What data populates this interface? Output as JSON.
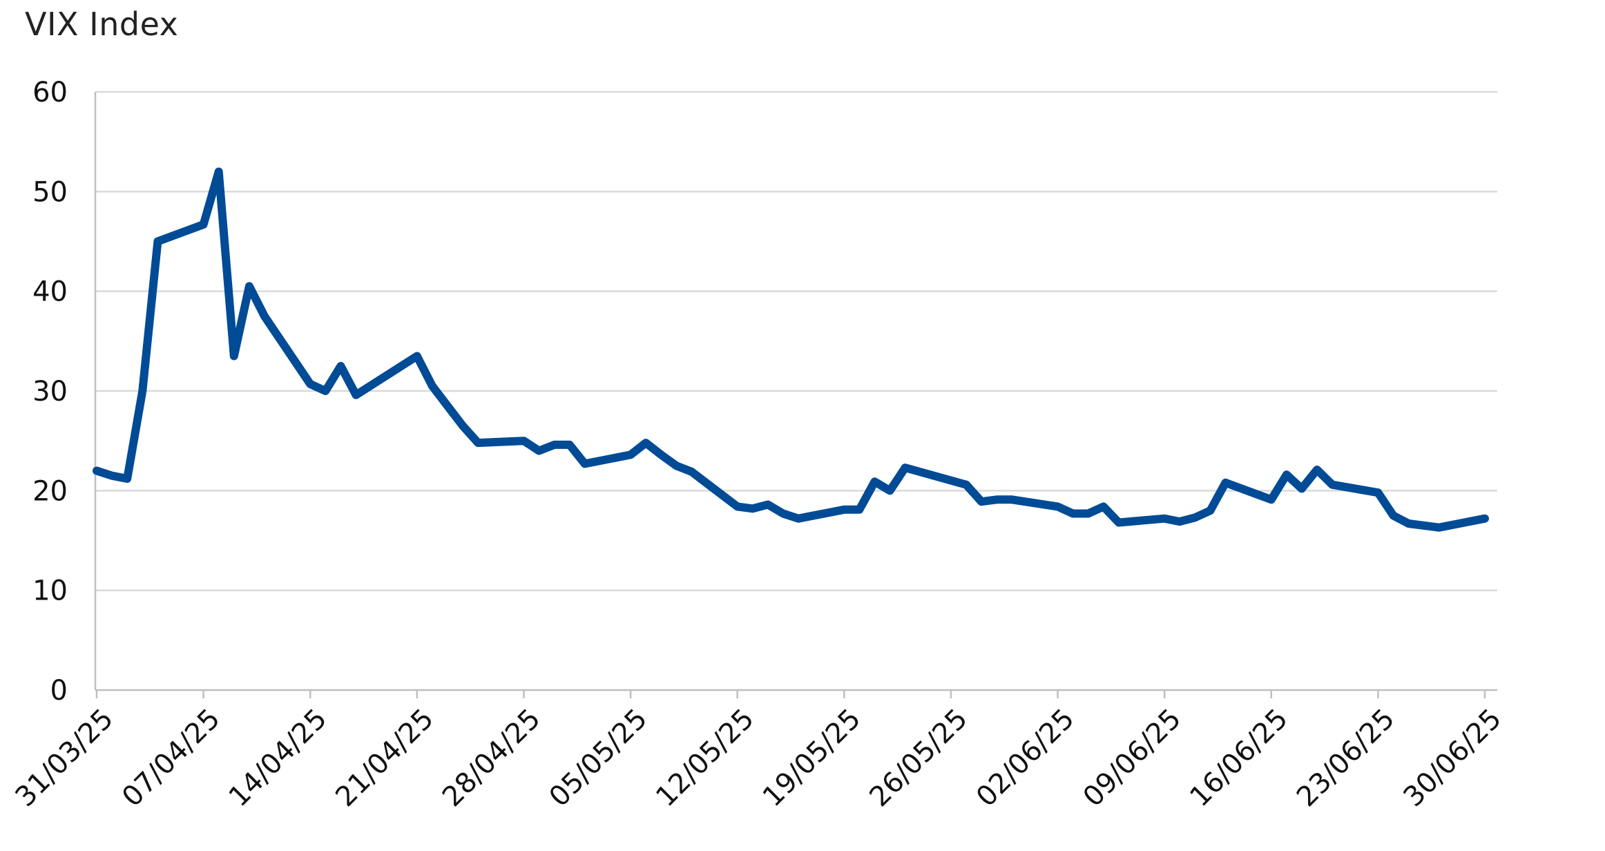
{
  "chart_data": {
    "type": "line",
    "title": "VIX Index",
    "xlabel": "",
    "ylabel": "",
    "ylim": [
      0,
      60
    ],
    "yticks": [
      "0",
      "10",
      "20",
      "30",
      "40",
      "50",
      "60"
    ],
    "xticks": [
      "31/03/25",
      "07/04/25",
      "14/04/25",
      "21/04/25",
      "28/04/25",
      "05/05/25",
      "12/05/25",
      "19/05/25",
      "26/05/25",
      "02/06/25",
      "09/06/25",
      "16/06/25",
      "23/06/25",
      "30/06/25"
    ],
    "grid": true,
    "legend": "none",
    "series": [
      {
        "color": "#004b96",
        "points": [
          [
            "31/03/25",
            22.0
          ],
          [
            "01/04/25",
            21.5
          ],
          [
            "02/04/25",
            21.2
          ],
          [
            "03/04/25",
            30.0
          ],
          [
            "04/04/25",
            45.0
          ],
          [
            "07/04/25",
            46.7
          ],
          [
            "08/04/25",
            52.0
          ],
          [
            "09/04/25",
            33.5
          ],
          [
            "10/04/25",
            40.5
          ],
          [
            "11/04/25",
            37.5
          ],
          [
            "14/04/25",
            30.7
          ],
          [
            "15/04/25",
            30.0
          ],
          [
            "16/04/25",
            32.5
          ],
          [
            "17/04/25",
            29.6
          ],
          [
            "21/04/25",
            33.5
          ],
          [
            "22/04/25",
            30.5
          ],
          [
            "23/04/25",
            28.5
          ],
          [
            "24/04/25",
            26.5
          ],
          [
            "25/04/25",
            24.8
          ],
          [
            "28/04/25",
            25.0
          ],
          [
            "29/04/25",
            24.0
          ],
          [
            "30/04/25",
            24.6
          ],
          [
            "01/05/25",
            24.6
          ],
          [
            "02/05/25",
            22.7
          ],
          [
            "05/05/25",
            23.6
          ],
          [
            "06/05/25",
            24.8
          ],
          [
            "07/05/25",
            23.6
          ],
          [
            "08/05/25",
            22.5
          ],
          [
            "09/05/25",
            21.9
          ],
          [
            "12/05/25",
            18.4
          ],
          [
            "13/05/25",
            18.2
          ],
          [
            "14/05/25",
            18.6
          ],
          [
            "15/05/25",
            17.7
          ],
          [
            "16/05/25",
            17.2
          ],
          [
            "19/05/25",
            18.1
          ],
          [
            "20/05/25",
            18.1
          ],
          [
            "21/05/25",
            20.9
          ],
          [
            "22/05/25",
            20.0
          ],
          [
            "23/05/25",
            22.3
          ],
          [
            "27/05/25",
            20.6
          ],
          [
            "28/05/25",
            18.9
          ],
          [
            "29/05/25",
            19.1
          ],
          [
            "30/05/25",
            19.1
          ],
          [
            "02/06/25",
            18.4
          ],
          [
            "03/06/25",
            17.7
          ],
          [
            "04/06/25",
            17.7
          ],
          [
            "05/06/25",
            18.4
          ],
          [
            "06/06/25",
            16.8
          ],
          [
            "09/06/25",
            17.2
          ],
          [
            "10/06/25",
            16.9
          ],
          [
            "11/06/25",
            17.3
          ],
          [
            "12/06/25",
            18.0
          ],
          [
            "13/06/25",
            20.8
          ],
          [
            "16/06/25",
            19.1
          ],
          [
            "17/06/25",
            21.6
          ],
          [
            "18/06/25",
            20.2
          ],
          [
            "19/06/25",
            22.1
          ],
          [
            "20/06/25",
            20.6
          ],
          [
            "23/06/25",
            19.8
          ],
          [
            "24/06/25",
            17.5
          ],
          [
            "25/06/25",
            16.7
          ],
          [
            "27/06/25",
            16.3
          ],
          [
            "30/06/25",
            17.2
          ]
        ]
      }
    ]
  }
}
